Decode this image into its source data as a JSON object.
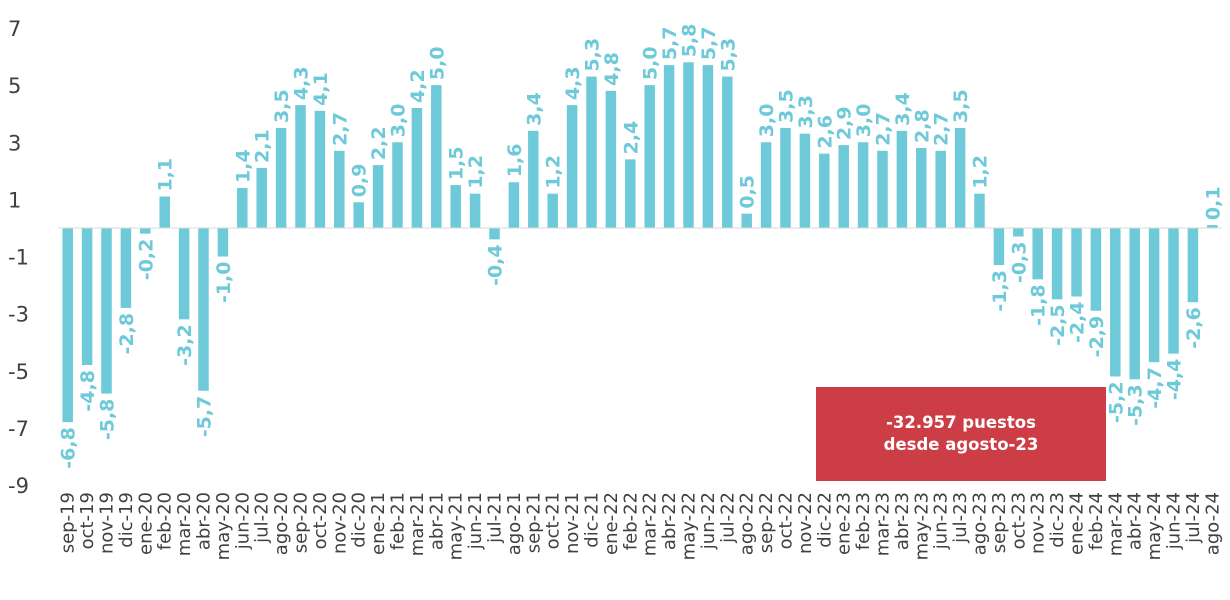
{
  "colors": {
    "bar": "#6ECAD9",
    "label": "#6ECAD9",
    "callout_bg": "#CC3D45",
    "callout_text": "#FFFFFF",
    "axis_text": "#404040"
  },
  "callout": {
    "line1": "-32.957 puestos",
    "line2": "desde agosto-23"
  },
  "chart_data": {
    "type": "bar",
    "title": "",
    "xlabel": "",
    "ylabel": "",
    "ylim": [
      -9,
      7
    ],
    "yticks": [
      "7",
      "5",
      "3",
      "1",
      "-1",
      "-3",
      "-5",
      "-7",
      "-9"
    ],
    "grid": false,
    "categories": [
      "sep-19",
      "oct-19",
      "nov-19",
      "dic-19",
      "ene-20",
      "feb-20",
      "mar-20",
      "abr-20",
      "may-20",
      "jun-20",
      "jul-20",
      "ago-20",
      "sep-20",
      "oct-20",
      "nov-20",
      "dic-20",
      "ene-21",
      "feb-21",
      "mar-21",
      "abr-21",
      "may-21",
      "jun-21",
      "jul-21",
      "ago-21",
      "sep-21",
      "oct-21",
      "nov-21",
      "dic-21",
      "ene-22",
      "feb-22",
      "mar-22",
      "abr-22",
      "may-22",
      "jun-22",
      "jul-22",
      "ago-22",
      "sep-22",
      "oct-22",
      "nov-22",
      "dic-22",
      "ene-23",
      "feb-23",
      "mar-23",
      "abr-23",
      "may-23",
      "jun-23",
      "jul-23",
      "ago-23",
      "sep-23",
      "oct-23",
      "nov-23",
      "dic-23",
      "ene-24",
      "feb-24",
      "mar-24",
      "abr-24",
      "may-24",
      "jun-24",
      "jul-24",
      "ago-24"
    ],
    "values": [
      -6.8,
      -4.8,
      -5.8,
      -2.8,
      -0.2,
      1.1,
      -3.2,
      -5.7,
      -1.0,
      1.4,
      2.1,
      3.5,
      4.3,
      4.1,
      2.7,
      0.9,
      2.2,
      3.0,
      4.2,
      5.0,
      1.5,
      1.2,
      -0.4,
      1.6,
      3.4,
      1.2,
      4.3,
      5.3,
      4.8,
      2.4,
      5.0,
      5.7,
      5.8,
      5.7,
      5.3,
      0.5,
      3.0,
      3.5,
      3.3,
      2.6,
      2.9,
      3.0,
      2.7,
      3.4,
      2.8,
      2.7,
      3.5,
      1.2,
      -1.3,
      -0.3,
      -1.8,
      -2.5,
      -2.4,
      -2.9,
      -5.2,
      -5.3,
      -4.7,
      -4.4,
      -2.6,
      0.1
    ],
    "labels": [
      "-6,8",
      "-4,8",
      "-5,8",
      "-2,8",
      "-0,2",
      "1,1",
      "-3,2",
      "-5,7",
      "-1,0",
      "1,4",
      "2,1",
      "3,5",
      "4,3",
      "4,1",
      "2,7",
      "0,9",
      "2,2",
      "3,0",
      "4,2",
      "5,0",
      "1,5",
      "1,2",
      "-0,4",
      "1,6",
      "3,4",
      "1,2",
      "4,3",
      "5,3",
      "4,8",
      "2,4",
      "5,0",
      "5,7",
      "5,8",
      "5,7",
      "5,3",
      "0,5",
      "3,0",
      "3,5",
      "3,3",
      "2,6",
      "2,9",
      "3,0",
      "2,7",
      "3,4",
      "2,8",
      "2,7",
      "3,5",
      "1,2",
      "-1,3",
      "-0,3",
      "-1,8",
      "-2,5",
      "-2,4",
      "-2,9",
      "-5,2",
      "-5,3",
      "-4,7",
      "-4,4",
      "-2,6",
      "0,1"
    ]
  }
}
